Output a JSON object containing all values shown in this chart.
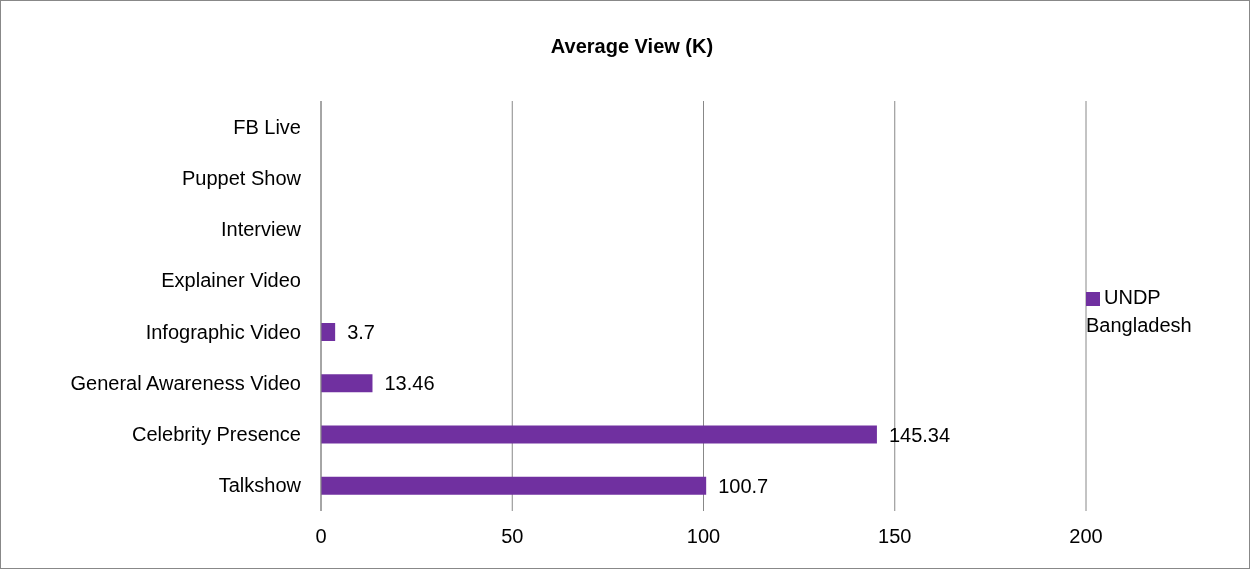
{
  "chart_data": {
    "type": "bar",
    "orientation": "horizontal",
    "title": "Average View (K)",
    "categories": [
      "FB Live",
      "Puppet Show",
      "Interview",
      "Explainer Video",
      "Infographic Video",
      "General Awareness Video",
      "Celebrity Presence",
      "Talkshow"
    ],
    "series": [
      {
        "name": "UNDP Bangladesh",
        "color": "#7030a0",
        "values": [
          null,
          null,
          null,
          null,
          3.7,
          13.46,
          145.34,
          100.7
        ]
      }
    ],
    "xlim": [
      0,
      200
    ],
    "xticks": [
      0,
      50,
      100,
      150,
      200
    ],
    "grid": "x",
    "legend": "right",
    "data_labels": true
  }
}
